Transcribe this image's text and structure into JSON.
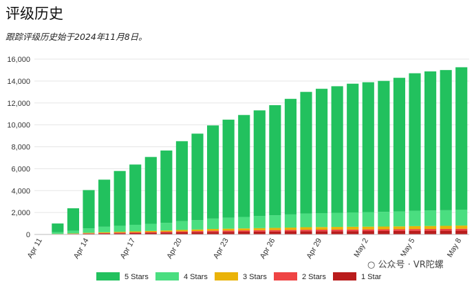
{
  "header": {
    "title": "评级历史",
    "subtitle": "跟踪评级历史始于2024年11月8日。"
  },
  "watermark": {
    "icon": "wechat-icon",
    "text": "公众号 · VR陀螺"
  },
  "chart_data": {
    "type": "bar",
    "stacked": true,
    "title": "",
    "xlabel": "",
    "ylabel": "",
    "ylim": [
      0,
      16000
    ],
    "yticks": [
      0,
      2000,
      4000,
      6000,
      8000,
      10000,
      12000,
      14000,
      16000
    ],
    "grid": true,
    "legend": "bottom",
    "categories": [
      "Apr 11",
      "Apr 12",
      "Apr 13",
      "Apr 14",
      "Apr 15",
      "Apr 16",
      "Apr 17",
      "Apr 18",
      "Apr 19",
      "Apr 20",
      "Apr 21",
      "Apr 22",
      "Apr 23",
      "Apr 24",
      "Apr 25",
      "Apr 26",
      "Apr 27",
      "Apr 28",
      "Apr 29",
      "Apr 30",
      "May 1",
      "May 2",
      "May 3",
      "May 4",
      "May 5",
      "May 6",
      "May 7",
      "May 8"
    ],
    "xtick_labels": [
      "Apr 11",
      "Apr 14",
      "Apr 17",
      "Apr 20",
      "Apr 23",
      "Apr 26",
      "Apr 29",
      "May 2",
      "May 5",
      "May 8"
    ],
    "series": [
      {
        "name": "5 Stars",
        "color": "#22c15e",
        "values": [
          0,
          800,
          2050,
          3500,
          4300,
          5000,
          5500,
          6100,
          6600,
          7300,
          7900,
          8500,
          8950,
          9300,
          9650,
          10050,
          10550,
          11100,
          11350,
          11550,
          11750,
          11850,
          11950,
          12200,
          12550,
          12700,
          12800,
          13000
        ]
      },
      {
        "name": "4 Stars",
        "color": "#4ade80",
        "values": [
          0,
          150,
          250,
          400,
          500,
          550,
          600,
          650,
          700,
          800,
          850,
          950,
          1000,
          1050,
          1100,
          1150,
          1200,
          1250,
          1270,
          1290,
          1310,
          1330,
          1340,
          1360,
          1400,
          1410,
          1420,
          1450
        ]
      },
      {
        "name": "3 Stars",
        "color": "#eab308",
        "values": [
          0,
          20,
          30,
          50,
          70,
          80,
          90,
          100,
          110,
          130,
          140,
          160,
          170,
          180,
          190,
          200,
          210,
          230,
          235,
          240,
          245,
          250,
          255,
          260,
          270,
          275,
          280,
          290
        ]
      },
      {
        "name": "2 Stars",
        "color": "#ef4444",
        "values": [
          0,
          10,
          20,
          30,
          40,
          50,
          60,
          70,
          80,
          90,
          100,
          110,
          115,
          120,
          125,
          130,
          135,
          140,
          143,
          146,
          148,
          150,
          152,
          155,
          160,
          162,
          165,
          170
        ]
      },
      {
        "name": "1 Star",
        "color": "#b91c1c",
        "values": [
          0,
          20,
          40,
          70,
          90,
          110,
          130,
          150,
          170,
          190,
          210,
          230,
          240,
          250,
          260,
          270,
          280,
          290,
          295,
          300,
          305,
          310,
          315,
          320,
          330,
          335,
          340,
          350
        ]
      }
    ]
  }
}
